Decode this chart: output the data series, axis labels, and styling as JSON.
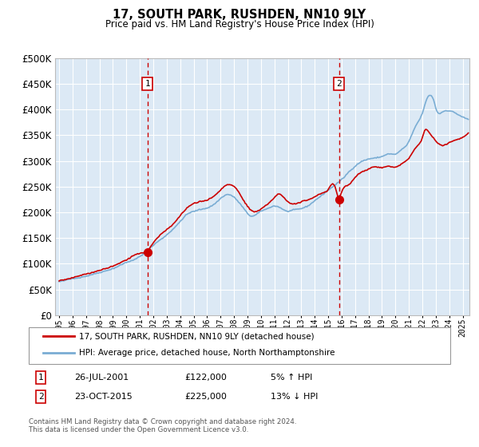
{
  "title": "17, SOUTH PARK, RUSHDEN, NN10 9LY",
  "subtitle": "Price paid vs. HM Land Registry's House Price Index (HPI)",
  "legend_line1": "17, SOUTH PARK, RUSHDEN, NN10 9LY (detached house)",
  "legend_line2": "HPI: Average price, detached house, North Northamptonshire",
  "footnote": "Contains HM Land Registry data © Crown copyright and database right 2024.\nThis data is licensed under the Open Government Licence v3.0.",
  "sale1_date": "26-JUL-2001",
  "sale1_price": "£122,000",
  "sale1_hpi": "5% ↑ HPI",
  "sale1_year": 2001.56,
  "sale1_value": 122000,
  "sale2_date": "23-OCT-2015",
  "sale2_price": "£225,000",
  "sale2_hpi": "13% ↓ HPI",
  "sale2_year": 2015.81,
  "sale2_value": 225000,
  "bg_color": "#dce9f5",
  "grid_color": "#ffffff",
  "line_red": "#cc0000",
  "line_blue": "#7aadd4",
  "ylim": [
    0,
    500000
  ],
  "yticks": [
    0,
    50000,
    100000,
    150000,
    200000,
    250000,
    300000,
    350000,
    400000,
    450000,
    500000
  ],
  "xlim_start": 1994.7,
  "xlim_end": 2025.5
}
